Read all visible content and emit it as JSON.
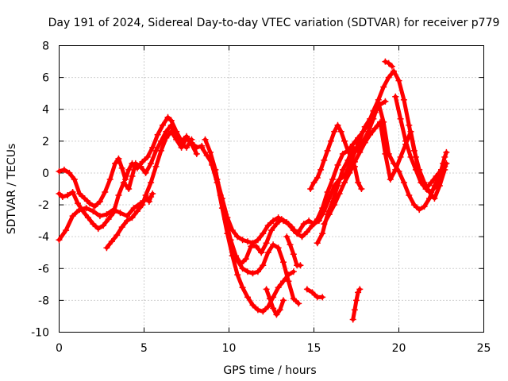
{
  "chart_data": {
    "type": "scatter",
    "title": "Day 191 of 2024, Sidereal Day-to-day VTEC variation (SDTVAR) for receiver p779",
    "xlabel": "GPS time / hours",
    "ylabel": "SDTVAR / TECUs",
    "xlim": [
      0,
      25
    ],
    "ylim": [
      -10,
      8
    ],
    "xticks": [
      0,
      5,
      10,
      15,
      20,
      25
    ],
    "yticks": [
      -10,
      -8,
      -6,
      -4,
      -2,
      0,
      2,
      4,
      6,
      8
    ],
    "grid": true,
    "marker": "+",
    "color": "#ff0000",
    "series": [
      {
        "x": [
          0.0,
          0.3,
          0.6,
          0.9,
          1.2,
          1.5,
          1.8,
          2.1,
          2.4,
          2.7,
          3.0,
          3.3,
          3.5,
          3.7,
          3.9,
          4.1,
          4.3,
          4.6,
          4.9,
          5.2,
          5.5,
          5.8,
          6.1,
          6.4,
          6.6,
          6.9,
          7.2,
          7.5,
          7.8,
          8.1,
          8.4
        ],
        "y": [
          0.1,
          0.2,
          0.0,
          -0.4,
          -1.3,
          -1.6,
          -1.9,
          -2.1,
          -1.8,
          -1.2,
          -0.4,
          0.6,
          0.9,
          0.3,
          -0.4,
          0.2,
          0.6,
          0.3,
          0.7,
          1.0,
          1.6,
          2.4,
          3.0,
          3.5,
          3.3,
          2.6,
          2.0,
          2.3,
          1.9,
          1.6,
          1.7
        ]
      },
      {
        "x": [
          0.0,
          0.2,
          0.5,
          0.8,
          1.1,
          1.4,
          1.7,
          2.0,
          2.3,
          2.6,
          2.9,
          3.2,
          3.5,
          3.8,
          4.1,
          4.3,
          4.5,
          4.8,
          5.1,
          5.4,
          5.7,
          6.0,
          6.3,
          6.6,
          6.9,
          7.2,
          7.5,
          7.8
        ],
        "y": [
          -1.3,
          -1.5,
          -1.4,
          -1.2,
          -1.9,
          -2.4,
          -2.8,
          -3.2,
          -3.5,
          -3.3,
          -2.9,
          -2.5,
          -1.4,
          -0.6,
          -1.0,
          -0.2,
          0.6,
          0.4,
          0.0,
          0.6,
          1.4,
          2.0,
          2.6,
          3.0,
          2.4,
          1.8,
          1.6,
          2.1
        ]
      },
      {
        "x": [
          2.8,
          3.1,
          3.4,
          3.7,
          4.0,
          4.3,
          4.6,
          4.9,
          5.1,
          5.4,
          5.7,
          6.0,
          6.3,
          6.6,
          6.9,
          7.2,
          7.5,
          7.8,
          8.1
        ],
        "y": [
          -4.7,
          -4.3,
          -3.9,
          -3.4,
          -3.0,
          -2.8,
          -2.4,
          -2.0,
          -1.4,
          -0.6,
          0.4,
          1.4,
          2.2,
          2.6,
          2.1,
          1.6,
          2.2,
          1.8,
          1.2
        ]
      },
      {
        "x": [
          0.0,
          0.4,
          0.8,
          1.2,
          1.6,
          2.0,
          2.4,
          2.8,
          3.2,
          3.6,
          4.0,
          4.4,
          4.8,
          5.2
        ],
        "y": [
          -4.2,
          -3.6,
          -2.7,
          -2.3,
          -2.2,
          -2.4,
          -2.7,
          -2.6,
          -2.3,
          -2.5,
          -2.7,
          -2.2,
          -1.9,
          -1.6
        ]
      },
      {
        "x": [
          5.3,
          5.4,
          5.5
        ],
        "y": [
          -1.8,
          -1.5,
          -1.3
        ]
      },
      {
        "x": [
          8.4,
          8.7,
          9.0,
          9.3,
          9.6,
          9.9,
          10.2,
          10.5,
          10.8,
          11.1,
          11.4,
          11.7,
          12.0,
          12.3,
          12.6,
          12.9,
          13.2,
          13.5,
          13.8,
          14.1,
          14.4,
          14.7,
          15.0,
          15.3,
          15.6,
          15.9,
          16.2,
          16.5,
          16.8,
          17.1,
          17.4,
          17.7,
          18.0,
          18.3,
          18.6,
          18.9,
          19.2
        ],
        "y": [
          1.6,
          1.1,
          0.6,
          -0.4,
          -1.6,
          -2.8,
          -3.6,
          -4.0,
          -4.2,
          -4.3,
          -4.4,
          -4.2,
          -3.8,
          -3.3,
          -3.0,
          -2.8,
          -3.0,
          -3.2,
          -3.6,
          -3.7,
          -3.2,
          -3.0,
          -3.2,
          -3.0,
          -2.4,
          -1.6,
          -0.8,
          -0.4,
          -0.2,
          0.5,
          1.3,
          2.1,
          2.9,
          3.4,
          3.8,
          4.3,
          4.5
        ]
      },
      {
        "x": [
          8.6,
          8.9,
          9.2,
          9.5,
          9.8,
          10.1,
          10.4,
          10.7,
          11.0,
          11.3,
          11.6,
          11.9,
          12.2,
          12.5,
          12.8,
          13.1,
          13.4,
          13.7,
          14.0,
          14.3,
          14.6,
          14.9,
          15.2,
          15.5,
          15.8,
          16.1,
          16.4,
          16.7,
          17.0,
          17.3,
          17.6,
          17.9,
          18.2,
          18.5,
          18.8,
          19.1,
          19.4,
          19.7,
          20.0,
          20.3,
          20.6,
          20.9,
          21.2,
          21.5,
          21.8,
          22.1,
          22.4,
          22.7
        ],
        "y": [
          2.1,
          1.3,
          0.2,
          -1.4,
          -2.9,
          -4.2,
          -5.2,
          -5.7,
          -5.4,
          -4.6,
          -4.6,
          -5.0,
          -4.4,
          -3.6,
          -3.2,
          -2.9,
          -3.1,
          -3.4,
          -3.8,
          -4.0,
          -3.7,
          -3.3,
          -2.9,
          -2.2,
          -1.2,
          -0.4,
          0.5,
          1.2,
          1.4,
          1.8,
          2.2,
          2.6,
          3.1,
          3.9,
          4.6,
          5.4,
          6.0,
          6.4,
          5.8,
          4.6,
          3.0,
          1.4,
          0.2,
          -0.6,
          -1.2,
          -1.6,
          -0.8,
          0.2
        ]
      },
      {
        "x": [
          9.0,
          9.3,
          9.6,
          9.9,
          10.2,
          10.5,
          10.8,
          11.1,
          11.4,
          11.7,
          12.0,
          12.3,
          12.6,
          12.9,
          13.2,
          13.5,
          13.8
        ],
        "y": [
          0.5,
          -0.6,
          -2.2,
          -3.8,
          -5.2,
          -6.4,
          -7.2,
          -7.8,
          -8.3,
          -8.6,
          -8.7,
          -8.4,
          -7.8,
          -7.2,
          -6.8,
          -6.4,
          -6.2
        ]
      },
      {
        "x": [
          10.2,
          10.5,
          10.8,
          11.1,
          11.4,
          11.7,
          12.0,
          12.3,
          12.6,
          12.9,
          13.2,
          13.5,
          13.8,
          14.1
        ],
        "y": [
          -4.8,
          -5.5,
          -6.0,
          -6.2,
          -6.3,
          -6.2,
          -5.8,
          -5.0,
          -4.5,
          -4.7,
          -5.6,
          -6.8,
          -7.9,
          -8.2
        ]
      },
      {
        "x": [
          12.2,
          12.4,
          12.6,
          12.8,
          13.0,
          13.2
        ],
        "y": [
          -7.3,
          -7.9,
          -8.5,
          -8.9,
          -8.6,
          -8.0
        ]
      },
      {
        "x": [
          13.4,
          13.6,
          13.8,
          14.0,
          14.2
        ],
        "y": [
          -4.0,
          -4.5,
          -5.1,
          -5.8,
          -5.8
        ]
      },
      {
        "x": [
          14.8,
          15.0,
          15.2,
          15.4,
          15.6,
          15.8,
          16.0,
          16.2,
          16.4,
          16.6,
          16.8,
          17.0,
          17.2,
          17.4,
          17.6,
          17.8
        ],
        "y": [
          -1.0,
          -0.6,
          -0.3,
          0.2,
          0.8,
          1.4,
          2.0,
          2.6,
          3.0,
          2.6,
          2.0,
          1.4,
          1.0,
          0.4,
          -0.6,
          -1.0
        ]
      },
      {
        "x": [
          15.2,
          15.5,
          15.8,
          16.1,
          16.4,
          16.7,
          17.0,
          17.3,
          17.6,
          17.9,
          18.2,
          18.5,
          18.8,
          19.1,
          19.4,
          19.7,
          20.0,
          20.3,
          20.6,
          20.9,
          21.2,
          21.5,
          21.8,
          22.1,
          22.4,
          22.7
        ],
        "y": [
          -4.4,
          -3.8,
          -2.6,
          -1.8,
          -0.8,
          0.2,
          0.8,
          1.6,
          1.4,
          2.0,
          2.6,
          3.4,
          4.4,
          3.2,
          1.2,
          0.6,
          0.1,
          -0.6,
          -1.4,
          -2.0,
          -2.3,
          -2.1,
          -1.6,
          -0.8,
          -0.2,
          0.4
        ]
      },
      {
        "x": [
          15.6,
          15.9,
          16.2,
          16.5,
          16.8,
          17.1,
          17.4,
          17.7,
          18.0,
          18.3,
          18.6,
          18.9,
          19.2,
          19.5,
          19.8,
          20.1,
          20.4,
          20.7,
          21.0,
          21.3,
          21.6,
          21.9,
          22.2,
          22.5,
          22.8
        ],
        "y": [
          -3.2,
          -2.6,
          -2.0,
          -1.3,
          -0.6,
          0.0,
          0.7,
          1.3,
          1.9,
          2.4,
          2.8,
          3.2,
          1.2,
          -0.4,
          0.2,
          1.0,
          1.8,
          2.6,
          1.0,
          -0.4,
          -1.0,
          -1.2,
          -0.8,
          -0.2,
          0.6
        ]
      },
      {
        "x": [
          14.6,
          14.9,
          15.2,
          15.5
        ],
        "y": [
          -7.3,
          -7.5,
          -7.8,
          -7.8
        ]
      },
      {
        "x": [
          17.3,
          17.4,
          17.5,
          17.6,
          17.7
        ],
        "y": [
          -9.2,
          -8.6,
          -8.0,
          -7.5,
          -7.3
        ]
      },
      {
        "x": [
          19.2,
          19.4,
          19.6
        ],
        "y": [
          7.0,
          6.9,
          6.7
        ]
      },
      {
        "x": [
          19.8,
          20.1,
          20.4,
          20.7,
          21.0,
          21.3,
          21.6,
          21.9,
          22.2,
          22.5
        ],
        "y": [
          4.8,
          3.4,
          2.0,
          1.0,
          0.2,
          -0.6,
          -1.0,
          -0.6,
          -0.2,
          0.2
        ]
      },
      {
        "x": [
          22.4,
          22.5,
          22.6,
          22.7,
          22.8
        ],
        "y": [
          -0.4,
          0.2,
          0.6,
          1.0,
          1.3
        ]
      }
    ]
  }
}
